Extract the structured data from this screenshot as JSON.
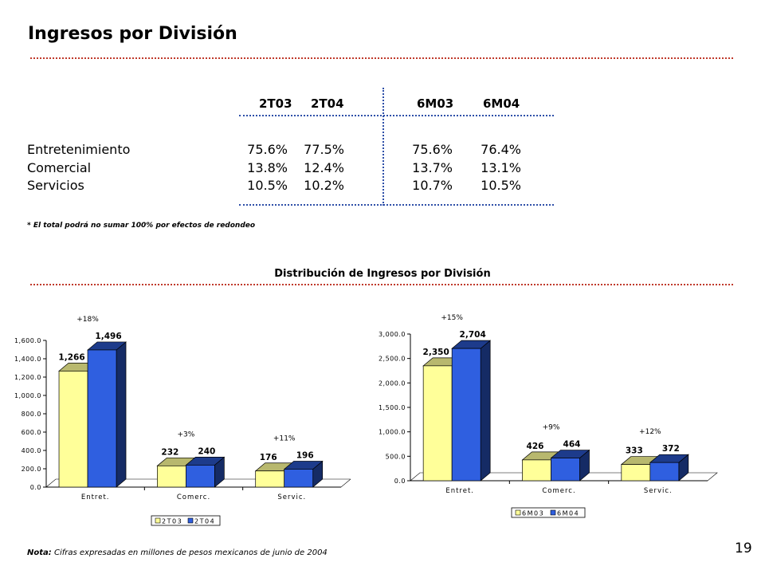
{
  "page": {
    "title": "Ingresos por División",
    "page_number": "19",
    "footnote": "* El total podrá no sumar 100% por efectos de redondeo",
    "chart_section_title": "Distribución de Ingresos por División",
    "note_label": "Nota:",
    "note_text": " Cifras expresadas en millones de pesos mexicanos de junio de 2004"
  },
  "table": {
    "headers": [
      "2T03",
      "2T04",
      "6M03",
      "6M04"
    ],
    "rows": [
      {
        "label": "Entretenimiento",
        "values": [
          "75.6%",
          "77.5%",
          "75.6%",
          "76.4%"
        ]
      },
      {
        "label": "Comercial",
        "values": [
          "13.8%",
          "12.4%",
          "13.7%",
          "13.1%"
        ]
      },
      {
        "label": "Servicios",
        "values": [
          "10.5%",
          "10.2%",
          "10.7%",
          "10.5%"
        ]
      }
    ]
  },
  "colors": {
    "series1": "#ffff99",
    "series2": "#2f5fe0",
    "accent_line": "#c0392b",
    "table_line": "#2e4fa8"
  },
  "chart_data": [
    {
      "type": "bar",
      "categories": [
        "Entret.",
        "Comerc.",
        "Servic."
      ],
      "series": [
        {
          "name": "2T03",
          "values": [
            1266,
            232,
            176
          ]
        },
        {
          "name": "2T04",
          "values": [
            1496,
            240,
            196
          ]
        }
      ],
      "data_labels": [
        [
          "1,266",
          "232",
          "176"
        ],
        [
          "1,496",
          "240",
          "196"
        ]
      ],
      "growth_labels": [
        "+18%",
        "+3%",
        "+11%"
      ],
      "ylim": [
        0,
        1600
      ],
      "ytick_step": 200,
      "ytick_labels": [
        "0.0",
        "200.0",
        "400.0",
        "600.0",
        "800.0",
        "1,000.0",
        "1,200.0",
        "1,400.0",
        "1,600.0"
      ],
      "legend": "bottom"
    },
    {
      "type": "bar",
      "categories": [
        "Entret.",
        "Comerc.",
        "Servic."
      ],
      "series": [
        {
          "name": "6M03",
          "values": [
            2350,
            426,
            333
          ]
        },
        {
          "name": "6M04",
          "values": [
            2704,
            464,
            372
          ]
        }
      ],
      "data_labels": [
        [
          "2,350",
          "426",
          "333"
        ],
        [
          "2,704",
          "464",
          "372"
        ]
      ],
      "growth_labels": [
        "+15%",
        "+9%",
        "+12%"
      ],
      "ylim": [
        0,
        3000
      ],
      "ytick_step": 500,
      "ytick_labels": [
        "0.0",
        "500.0",
        "1,000.0",
        "1,500.0",
        "2,000.0",
        "2,500.0",
        "3,000.0"
      ],
      "legend": "bottom"
    }
  ]
}
